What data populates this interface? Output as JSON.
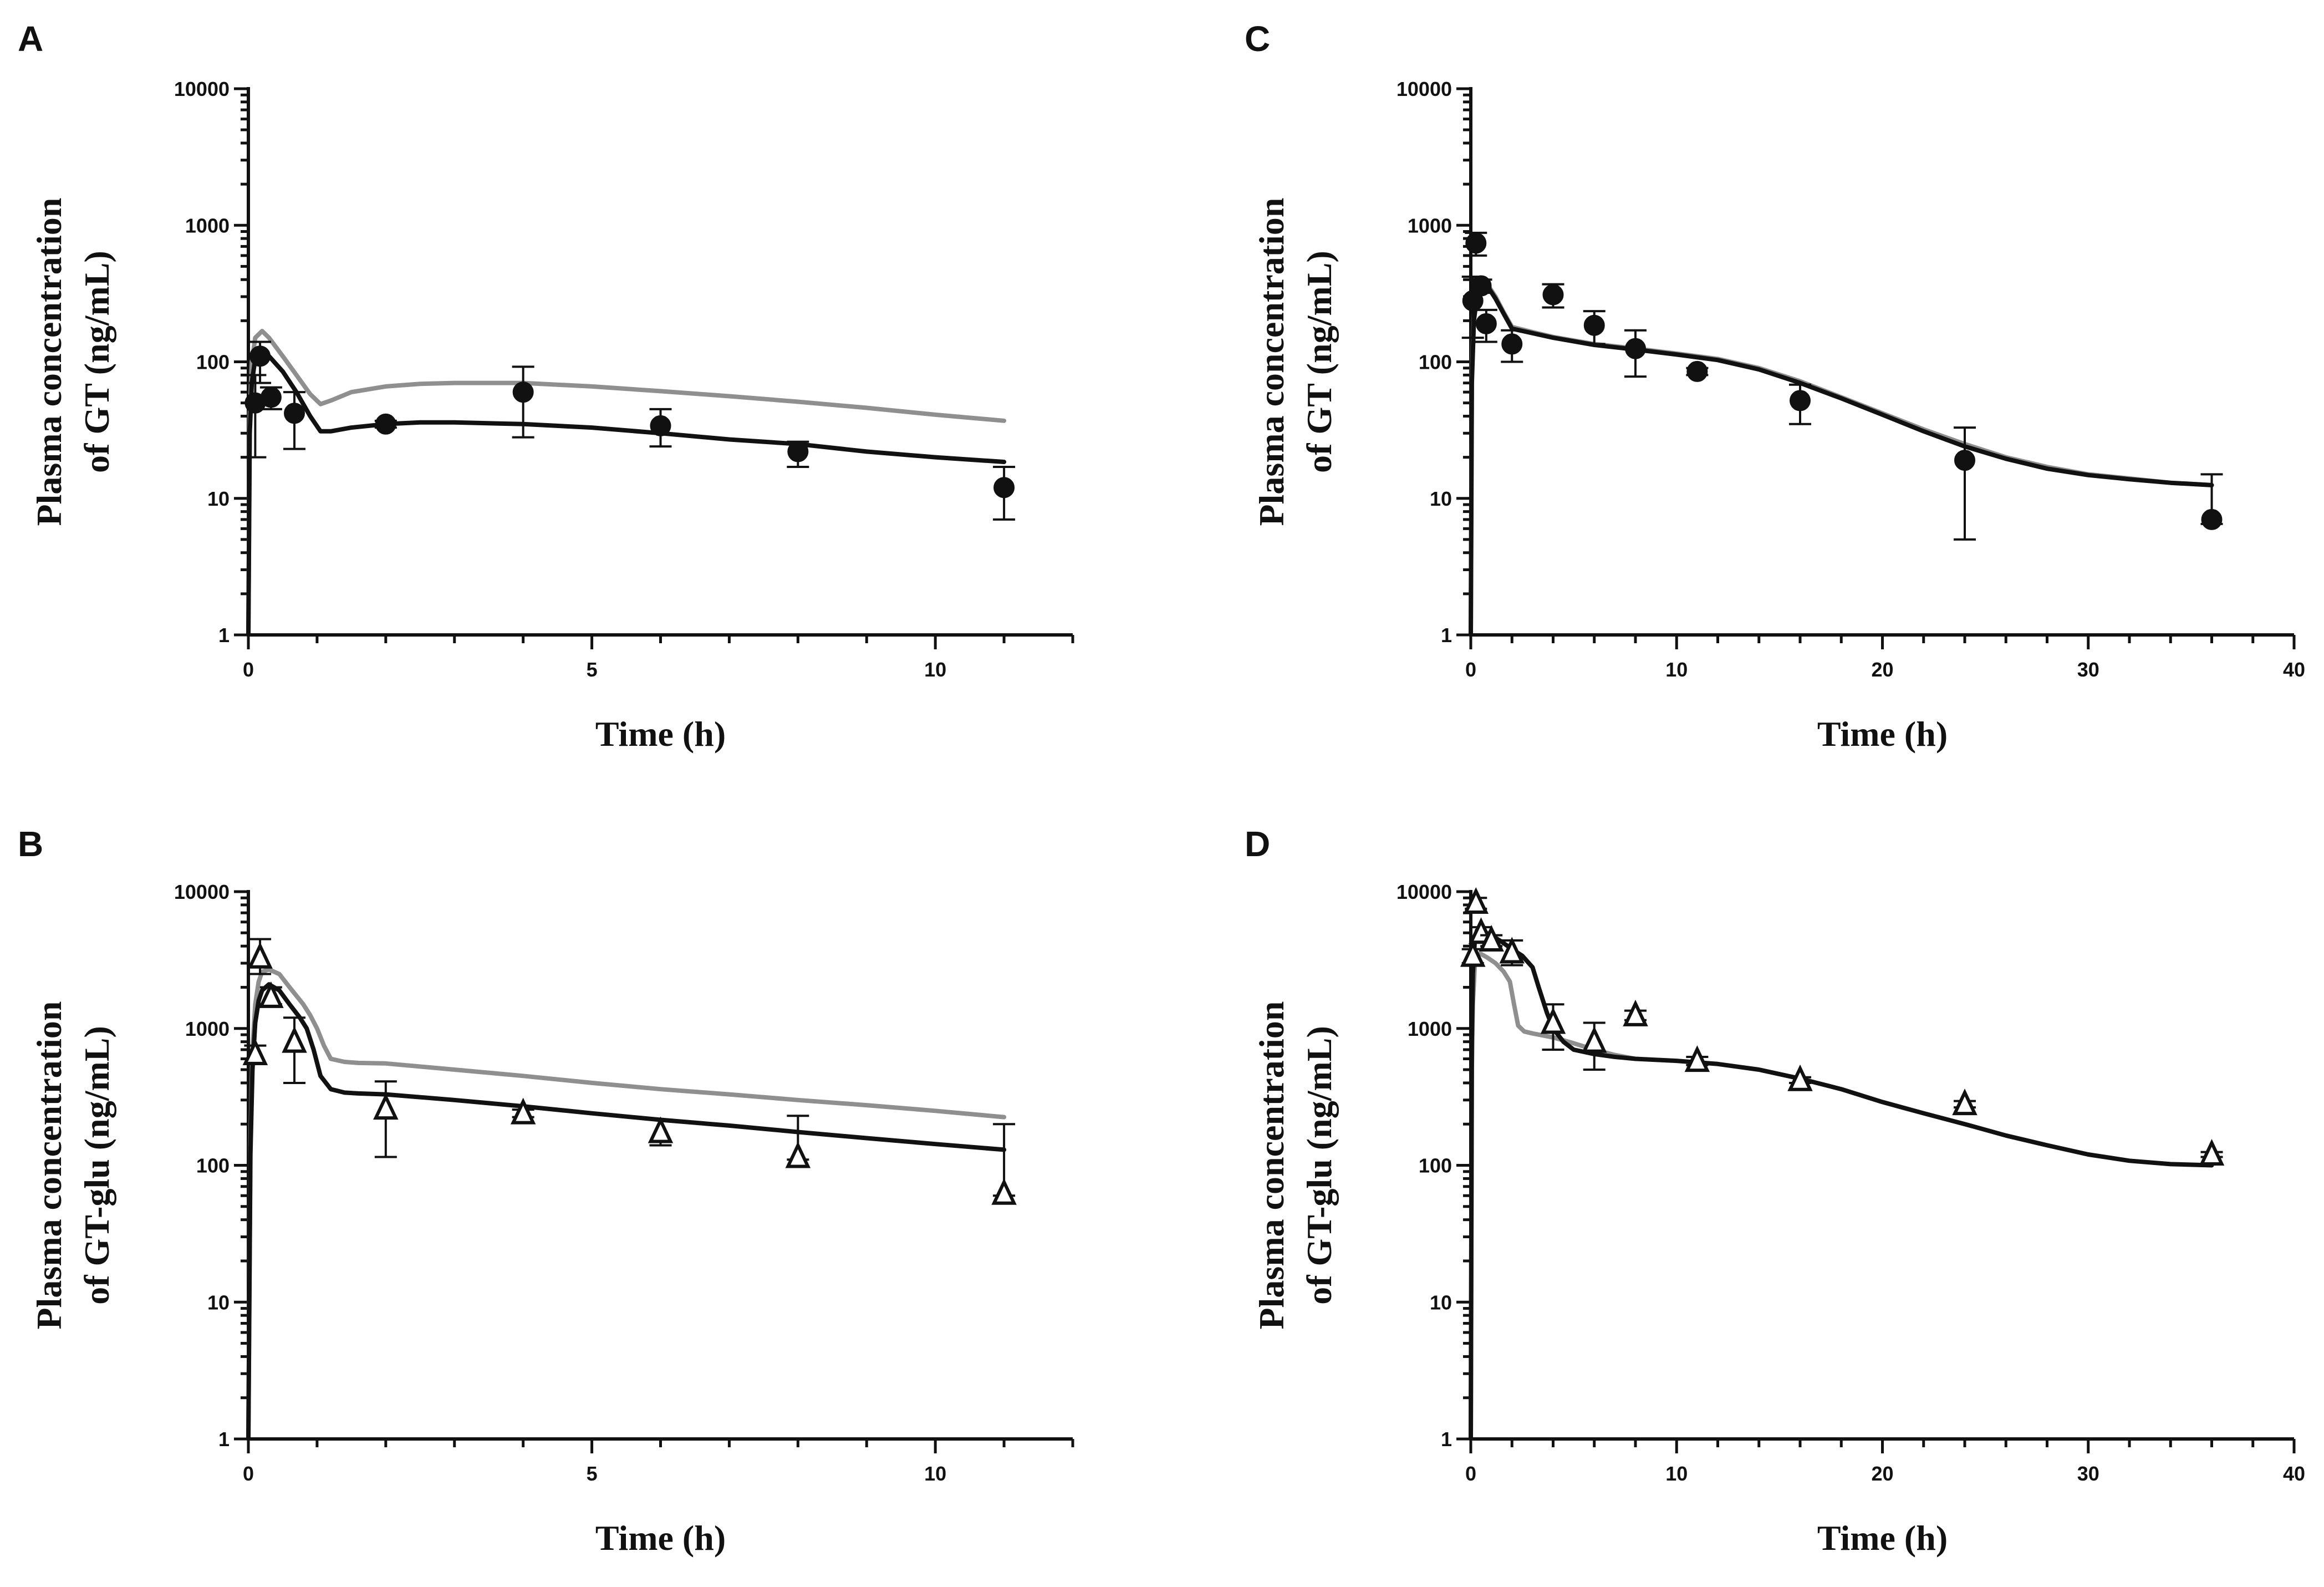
{
  "chart_data": [
    {
      "id": "A",
      "panel_label": "A",
      "type": "line",
      "xlabel": "Time (h)",
      "ylabel_line1": "Plasma concentration",
      "ylabel_line2": "of GT (ng/mL)",
      "xlim": [
        0,
        12
      ],
      "xticks": [
        0,
        5,
        10
      ],
      "xtick_labels": [
        "0",
        "5",
        "10"
      ],
      "ylim": [
        1,
        10000
      ],
      "yscale": "log",
      "yticks": [
        1,
        10,
        100,
        1000,
        10000
      ],
      "ytick_labels": [
        "1",
        "10",
        "100",
        "1000",
        "10000"
      ],
      "grid": false,
      "observed": {
        "marker": "filled-circle",
        "points": [
          {
            "x": 0.1,
            "y": 50,
            "err_low": 20,
            "err_high": 80
          },
          {
            "x": 0.17,
            "y": 110,
            "err_low": 70,
            "err_high": 140
          },
          {
            "x": 0.33,
            "y": 55,
            "err_low": 45,
            "err_high": 65
          },
          {
            "x": 0.67,
            "y": 42,
            "err_low": 23,
            "err_high": 60
          },
          {
            "x": 2,
            "y": 35,
            "err_low": 33,
            "err_high": 37
          },
          {
            "x": 4,
            "y": 60,
            "err_low": 28,
            "err_high": 92
          },
          {
            "x": 6,
            "y": 34,
            "err_low": 24,
            "err_high": 45
          },
          {
            "x": 8,
            "y": 22,
            "err_low": 17,
            "err_high": 26
          },
          {
            "x": 11,
            "y": 12,
            "err_low": 7,
            "err_high": 17
          }
        ]
      },
      "series": [
        {
          "name": "simulation-grey",
          "color": "#8f8f8f",
          "x": [
            0,
            0.02,
            0.05,
            0.1,
            0.2,
            0.3,
            0.5,
            0.7,
            0.9,
            1.05,
            1.2,
            1.5,
            2,
            2.5,
            3,
            4,
            5,
            6,
            7,
            8,
            9,
            10,
            11
          ],
          "y": [
            1,
            40,
            100,
            150,
            168,
            150,
            110,
            80,
            58,
            49,
            52,
            60,
            66,
            69,
            70,
            70,
            66,
            61,
            56,
            51,
            46,
            41,
            37
          ]
        },
        {
          "name": "simulation-black",
          "color": "#111111",
          "x": [
            0,
            0.02,
            0.05,
            0.1,
            0.2,
            0.3,
            0.5,
            0.7,
            0.9,
            1.05,
            1.2,
            1.5,
            2,
            2.5,
            3,
            4,
            5,
            6,
            7,
            8,
            9,
            10,
            11
          ],
          "y": [
            1,
            30,
            70,
            105,
            120,
            110,
            85,
            60,
            40,
            31,
            31,
            33,
            35,
            36,
            36,
            35,
            33,
            30,
            27,
            25,
            22,
            20,
            18.5
          ]
        }
      ]
    },
    {
      "id": "B",
      "panel_label": "B",
      "type": "line",
      "xlabel": "Time (h)",
      "ylabel_line1": "Plasma concentration",
      "ylabel_line2": "of GT-glu (ng/mL)",
      "xlim": [
        0,
        12
      ],
      "xticks": [
        0,
        5,
        10
      ],
      "xtick_labels": [
        "0",
        "5",
        "10"
      ],
      "ylim": [
        1,
        10000
      ],
      "yscale": "log",
      "yticks": [
        1,
        10,
        100,
        1000,
        10000
      ],
      "ytick_labels": [
        "1",
        "10",
        "100",
        "1000",
        "10000"
      ],
      "grid": false,
      "observed": {
        "marker": "open-triangle",
        "points": [
          {
            "x": 0.1,
            "y": 650,
            "err_low": 550,
            "err_high": 750
          },
          {
            "x": 0.17,
            "y": 3300,
            "err_low": 2500,
            "err_high": 4500
          },
          {
            "x": 0.33,
            "y": 1700,
            "err_low": 1500,
            "err_high": 2000
          },
          {
            "x": 0.67,
            "y": 800,
            "err_low": 400,
            "err_high": 1200
          },
          {
            "x": 2,
            "y": 260,
            "err_low": 115,
            "err_high": 410
          },
          {
            "x": 4,
            "y": 240,
            "err_low": 225,
            "err_high": 255
          },
          {
            "x": 6,
            "y": 175,
            "err_low": 140,
            "err_high": 215
          },
          {
            "x": 8,
            "y": 115,
            "err_low": 110,
            "err_high": 230
          },
          {
            "x": 11,
            "y": 62,
            "err_low": 60,
            "err_high": 200
          }
        ]
      },
      "series": [
        {
          "name": "simulation-grey",
          "color": "#8f8f8f",
          "x": [
            0,
            0.03,
            0.06,
            0.1,
            0.15,
            0.2,
            0.3,
            0.45,
            0.6,
            0.8,
            0.9,
            1.0,
            1.1,
            1.2,
            1.4,
            1.6,
            2,
            3,
            4,
            5,
            6,
            7,
            8,
            9,
            10,
            11
          ],
          "y": [
            1,
            150,
            700,
            1500,
            2200,
            2600,
            2700,
            2500,
            2000,
            1500,
            1250,
            1000,
            750,
            600,
            570,
            560,
            555,
            500,
            450,
            400,
            360,
            330,
            300,
            275,
            250,
            225
          ]
        },
        {
          "name": "simulation-black",
          "color": "#111111",
          "x": [
            0,
            0.03,
            0.06,
            0.1,
            0.15,
            0.2,
            0.3,
            0.45,
            0.6,
            0.75,
            0.85,
            0.95,
            1.05,
            1.2,
            1.4,
            1.6,
            2,
            3,
            4,
            5,
            6,
            7,
            8,
            9,
            10,
            11
          ],
          "y": [
            1,
            120,
            500,
            1100,
            1600,
            1900,
            2100,
            1900,
            1500,
            1200,
            1000,
            700,
            450,
            360,
            340,
            335,
            330,
            300,
            270,
            240,
            215,
            195,
            175,
            158,
            143,
            130
          ]
        }
      ]
    },
    {
      "id": "C",
      "panel_label": "C",
      "type": "line",
      "xlabel": "Time (h)",
      "ylabel_line1": "Plasma concentration",
      "ylabel_line2": "of GT (ng/mL)",
      "xlim": [
        0,
        40
      ],
      "xticks": [
        0,
        10,
        20,
        30,
        40
      ],
      "xtick_labels": [
        "0",
        "10",
        "20",
        "30",
        "40"
      ],
      "ylim": [
        1,
        10000
      ],
      "yscale": "log",
      "yticks": [
        1,
        10,
        100,
        1000,
        10000
      ],
      "ytick_labels": [
        "1",
        "10",
        "100",
        "1000",
        "10000"
      ],
      "grid": false,
      "observed": {
        "marker": "filled-circle",
        "points": [
          {
            "x": 0.1,
            "y": 280,
            "err_low": 150,
            "err_high": 420
          },
          {
            "x": 0.25,
            "y": 740,
            "err_low": 600,
            "err_high": 880
          },
          {
            "x": 0.5,
            "y": 360,
            "err_low": 320,
            "err_high": 400
          },
          {
            "x": 0.75,
            "y": 190,
            "err_low": 140,
            "err_high": 240
          },
          {
            "x": 2,
            "y": 135,
            "err_low": 100,
            "err_high": 170
          },
          {
            "x": 4,
            "y": 310,
            "err_low": 250,
            "err_high": 370
          },
          {
            "x": 6,
            "y": 185,
            "err_low": 135,
            "err_high": 235
          },
          {
            "x": 8,
            "y": 125,
            "err_low": 78,
            "err_high": 170
          },
          {
            "x": 11,
            "y": 85,
            "err_low": 80,
            "err_high": 90
          },
          {
            "x": 16,
            "y": 52,
            "err_low": 35,
            "err_high": 68
          },
          {
            "x": 24,
            "y": 19,
            "err_low": 5,
            "err_high": 33
          },
          {
            "x": 36,
            "y": 7,
            "err_low": 6.5,
            "err_high": 15
          }
        ]
      },
      "series": [
        {
          "name": "simulation-grey",
          "color": "#8f8f8f",
          "x": [
            0,
            0.05,
            0.15,
            0.3,
            0.5,
            0.8,
            1.2,
            1.6,
            2,
            3,
            4,
            6,
            8,
            10,
            12,
            14,
            16,
            18,
            20,
            22,
            24,
            26,
            28,
            30,
            32,
            34,
            36
          ],
          "y": [
            1,
            80,
            220,
            320,
            380,
            370,
            300,
            230,
            180,
            165,
            152,
            135,
            125,
            115,
            105,
            90,
            72,
            55,
            42,
            32,
            25,
            20,
            17,
            15,
            14,
            13,
            12.5
          ]
        },
        {
          "name": "simulation-black",
          "color": "#111111",
          "x": [
            0,
            0.05,
            0.15,
            0.3,
            0.5,
            0.8,
            1.2,
            1.6,
            2,
            3,
            4,
            6,
            8,
            10,
            12,
            14,
            16,
            18,
            20,
            22,
            24,
            26,
            28,
            30,
            32,
            34,
            36
          ],
          "y": [
            1,
            70,
            200,
            300,
            360,
            360,
            290,
            225,
            175,
            162,
            150,
            133,
            123,
            113,
            103,
            88,
            70,
            54,
            41,
            31,
            24,
            19.5,
            16.5,
            14.8,
            13.8,
            13,
            12.5
          ]
        }
      ]
    },
    {
      "id": "D",
      "panel_label": "D",
      "type": "line",
      "xlabel": "Time (h)",
      "ylabel_line1": "Plasma concentration",
      "ylabel_line2": "of GT-glu (ng/mL)",
      "xlim": [
        0,
        40
      ],
      "xticks": [
        0,
        10,
        20,
        30,
        40
      ],
      "xtick_labels": [
        "0",
        "10",
        "20",
        "30",
        "40"
      ],
      "ylim": [
        1,
        10000
      ],
      "yscale": "log",
      "yticks": [
        1,
        10,
        100,
        1000,
        10000
      ],
      "ytick_labels": [
        "1",
        "10",
        "100",
        "1000",
        "10000"
      ],
      "grid": false,
      "observed": {
        "marker": "open-triangle",
        "points": [
          {
            "x": 0.1,
            "y": 3400,
            "err_low": 3000,
            "err_high": 3800
          },
          {
            "x": 0.25,
            "y": 8300,
            "err_low": 7500,
            "err_high": 9000
          },
          {
            "x": 0.5,
            "y": 5000,
            "err_low": 4500,
            "err_high": 5500
          },
          {
            "x": 1,
            "y": 4400,
            "err_low": 4000,
            "err_high": 4800
          },
          {
            "x": 2,
            "y": 3600,
            "err_low": 2900,
            "err_high": 4400
          },
          {
            "x": 4,
            "y": 1100,
            "err_low": 700,
            "err_high": 1500
          },
          {
            "x": 6,
            "y": 800,
            "err_low": 500,
            "err_high": 1100
          },
          {
            "x": 8,
            "y": 1250,
            "err_low": 1150,
            "err_high": 1350
          },
          {
            "x": 11,
            "y": 580,
            "err_low": 540,
            "err_high": 620
          },
          {
            "x": 16,
            "y": 420,
            "err_low": 400,
            "err_high": 440
          },
          {
            "x": 24,
            "y": 280,
            "err_low": 265,
            "err_high": 295
          },
          {
            "x": 36,
            "y": 120,
            "err_low": 115,
            "err_high": 125
          }
        ]
      },
      "series": [
        {
          "name": "simulation-grey",
          "color": "#8f8f8f",
          "x": [
            0,
            0.05,
            0.1,
            0.2,
            0.3,
            0.5,
            0.8,
            1.2,
            1.6,
            1.9,
            2.1,
            2.3,
            2.6,
            3,
            4,
            5,
            6,
            7,
            8
          ],
          "y": [
            1,
            500,
            1500,
            3000,
            3500,
            3500,
            3300,
            3000,
            2600,
            2200,
            1500,
            1050,
            950,
            920,
            860,
            780,
            700,
            640,
            600
          ]
        },
        {
          "name": "simulation-black",
          "color": "#111111",
          "x": [
            0,
            0.05,
            0.1,
            0.2,
            0.3,
            0.5,
            1,
            1.5,
            2,
            2.5,
            3,
            3.3,
            3.7,
            4,
            4.5,
            5,
            6,
            7,
            8,
            10,
            12,
            14,
            16,
            18,
            20,
            22,
            24,
            26,
            28,
            30,
            32,
            34,
            36
          ],
          "y": [
            1,
            800,
            2500,
            4500,
            5200,
            5200,
            4800,
            4300,
            3800,
            3400,
            2800,
            2000,
            1300,
            1000,
            800,
            700,
            650,
            620,
            600,
            580,
            550,
            500,
            430,
            360,
            290,
            240,
            200,
            165,
            140,
            120,
            108,
            102,
            100
          ]
        }
      ]
    }
  ]
}
